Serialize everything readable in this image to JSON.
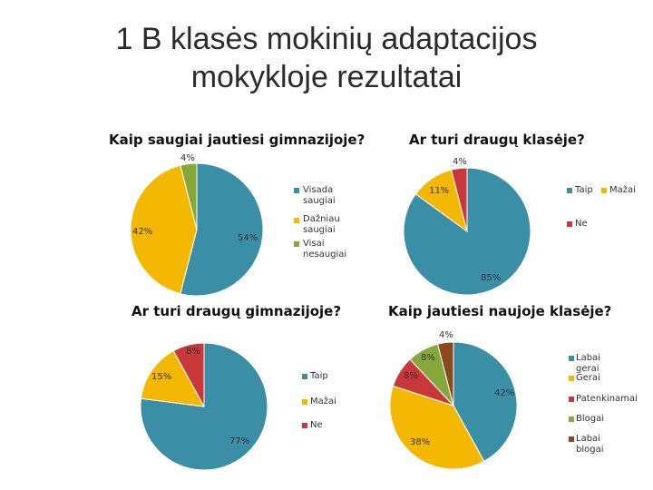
{
  "title_line1": "1 B klasės mokinių adaptacijos",
  "title_line2": "mokykloje rezultatai",
  "chart_data": [
    {
      "type": "pie",
      "title": "Kaip saugiai jautiesi gimnazijoje?",
      "categories": [
        "Visada saugiai",
        "Dažniau saugiai",
        "Visai nesaugiai"
      ],
      "legend": [
        "Visada saugiai",
        "Dažniau\nsaugiai",
        "Visai nesaugiai"
      ],
      "values": [
        54,
        42,
        4
      ],
      "labels": [
        "54%",
        "42%",
        "4%"
      ],
      "colors": [
        "#3a8fa6",
        "#f5b800",
        "#86a83b"
      ],
      "legend_position": "right"
    },
    {
      "type": "pie",
      "title": "Ar turi draugų klasėje?",
      "categories": [
        "Taip",
        "Mažai",
        "Ne"
      ],
      "values": [
        85,
        11,
        4
      ],
      "labels": [
        "85%",
        "11%",
        "4%"
      ],
      "colors": [
        "#3a8fa6",
        "#f5b800",
        "#c8373a"
      ],
      "legend_position": "right"
    },
    {
      "type": "pie",
      "title": "Ar turi draugų gimnazijoje?",
      "categories": [
        "Taip",
        "Mažai",
        "Ne"
      ],
      "values": [
        77,
        15,
        8
      ],
      "labels": [
        "77%",
        "15%",
        "8%"
      ],
      "colors": [
        "#3a8fa6",
        "#f5b800",
        "#c8373a"
      ],
      "legend_position": "right"
    },
    {
      "type": "pie",
      "title": "Kaip jautiesi naujoje klasėje?",
      "categories": [
        "Labai gerai",
        "Gerai",
        "Patenkinamai",
        "Blogai",
        "Labai blogai"
      ],
      "values": [
        42,
        38,
        8,
        8,
        4
      ],
      "labels": [
        "42%",
        "38%",
        "8%",
        "8%",
        "4%"
      ],
      "colors": [
        "#3a8fa6",
        "#f5b800",
        "#c8373a",
        "#86a83b",
        "#8b4a1c"
      ],
      "legend_position": "right"
    }
  ]
}
